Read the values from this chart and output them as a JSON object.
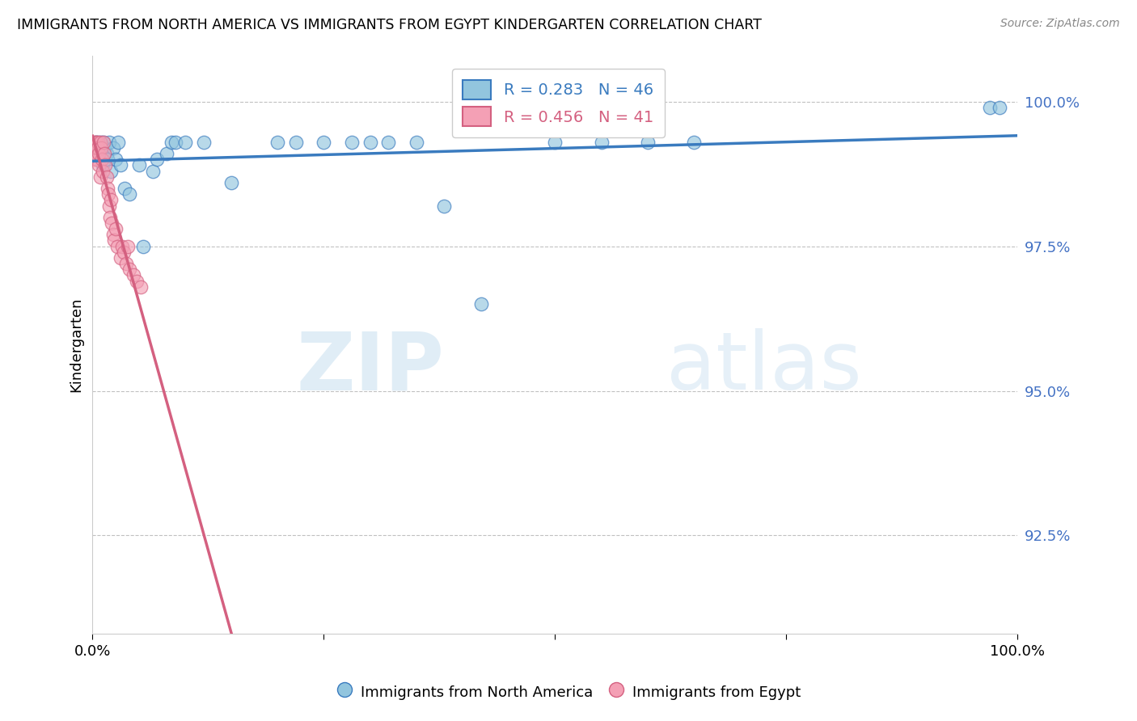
{
  "title": "IMMIGRANTS FROM NORTH AMERICA VS IMMIGRANTS FROM EGYPT KINDERGARTEN CORRELATION CHART",
  "source": "Source: ZipAtlas.com",
  "ylabel": "Kindergarten",
  "ytick_values": [
    1.0,
    0.975,
    0.95,
    0.925
  ],
  "xlim": [
    0.0,
    1.0
  ],
  "ylim": [
    0.908,
    1.008
  ],
  "legend_blue_R": "R = 0.283",
  "legend_blue_N": "N = 46",
  "legend_pink_R": "R = 0.456",
  "legend_pink_N": "N = 41",
  "blue_color": "#92c5de",
  "pink_color": "#f4a0b5",
  "blue_line_color": "#3a7bbf",
  "pink_line_color": "#d46080",
  "watermark_zip": "ZIP",
  "watermark_atlas": "atlas",
  "north_america_x": [
    0.003,
    0.004,
    0.005,
    0.006,
    0.007,
    0.008,
    0.009,
    0.01,
    0.011,
    0.012,
    0.013,
    0.015,
    0.016,
    0.018,
    0.02,
    0.022,
    0.025,
    0.028,
    0.03,
    0.035,
    0.04,
    0.05,
    0.055,
    0.065,
    0.07,
    0.08,
    0.085,
    0.09,
    0.1,
    0.12,
    0.15,
    0.2,
    0.22,
    0.25,
    0.28,
    0.3,
    0.32,
    0.35,
    0.38,
    0.42,
    0.5,
    0.55,
    0.6,
    0.65,
    0.97,
    0.98
  ],
  "north_america_y": [
    0.993,
    0.992,
    0.991,
    0.993,
    0.992,
    0.99,
    0.993,
    0.991,
    0.989,
    0.993,
    0.992,
    0.991,
    0.99,
    0.993,
    0.988,
    0.992,
    0.99,
    0.993,
    0.989,
    0.985,
    0.984,
    0.989,
    0.975,
    0.988,
    0.99,
    0.991,
    0.993,
    0.993,
    0.993,
    0.993,
    0.986,
    0.993,
    0.993,
    0.993,
    0.993,
    0.993,
    0.993,
    0.993,
    0.982,
    0.965,
    0.993,
    0.993,
    0.993,
    0.993,
    0.999,
    0.999
  ],
  "egypt_x": [
    0.001,
    0.002,
    0.002,
    0.003,
    0.003,
    0.004,
    0.004,
    0.005,
    0.005,
    0.006,
    0.006,
    0.007,
    0.007,
    0.008,
    0.008,
    0.009,
    0.01,
    0.011,
    0.012,
    0.013,
    0.014,
    0.015,
    0.016,
    0.017,
    0.018,
    0.019,
    0.02,
    0.021,
    0.022,
    0.023,
    0.025,
    0.027,
    0.03,
    0.032,
    0.034,
    0.036,
    0.038,
    0.04,
    0.044,
    0.048,
    0.052
  ],
  "egypt_y": [
    0.993,
    0.991,
    0.99,
    0.993,
    0.992,
    0.993,
    0.991,
    0.99,
    0.992,
    0.993,
    0.992,
    0.991,
    0.989,
    0.993,
    0.987,
    0.992,
    0.99,
    0.988,
    0.993,
    0.991,
    0.989,
    0.987,
    0.985,
    0.984,
    0.982,
    0.98,
    0.983,
    0.979,
    0.977,
    0.976,
    0.978,
    0.975,
    0.973,
    0.975,
    0.974,
    0.972,
    0.975,
    0.971,
    0.97,
    0.969,
    0.968
  ]
}
